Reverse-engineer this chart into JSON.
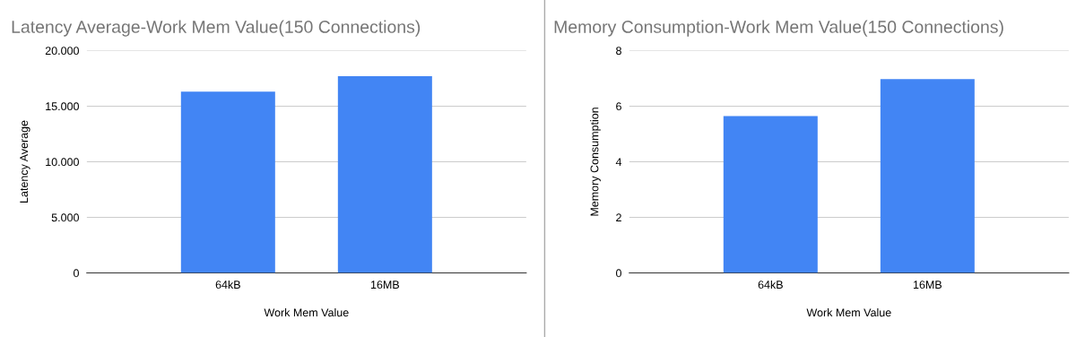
{
  "chart_data": [
    {
      "type": "bar",
      "title": "Latency Average-Work Mem Value(150 Connections)",
      "xlabel": "Work Mem Value",
      "ylabel": "Latency Average",
      "categories": [
        "64kB",
        "16MB"
      ],
      "values": [
        16300,
        17700
      ],
      "color": "#4285f4",
      "ylim": [
        0,
        20000
      ],
      "yticks": [
        0,
        {
          "value": 5000,
          "label": "5.000"
        },
        {
          "value": 10000,
          "label": "10.000"
        },
        {
          "value": 15000,
          "label": "15.000"
        },
        {
          "value": 20000,
          "label": "20.000"
        }
      ],
      "grid": "y"
    },
    {
      "type": "bar",
      "title": "Memory Consumption-Work Mem Value(150 Connections)",
      "xlabel": "Work Mem Value",
      "ylabel": "Memory Consumption",
      "categories": [
        "64kB",
        "16MB"
      ],
      "values": [
        5.64,
        6.97
      ],
      "color": "#4285f4",
      "ylim": [
        0,
        8
      ],
      "yticks": [
        0,
        2,
        4,
        6,
        8
      ],
      "grid": "y"
    }
  ]
}
